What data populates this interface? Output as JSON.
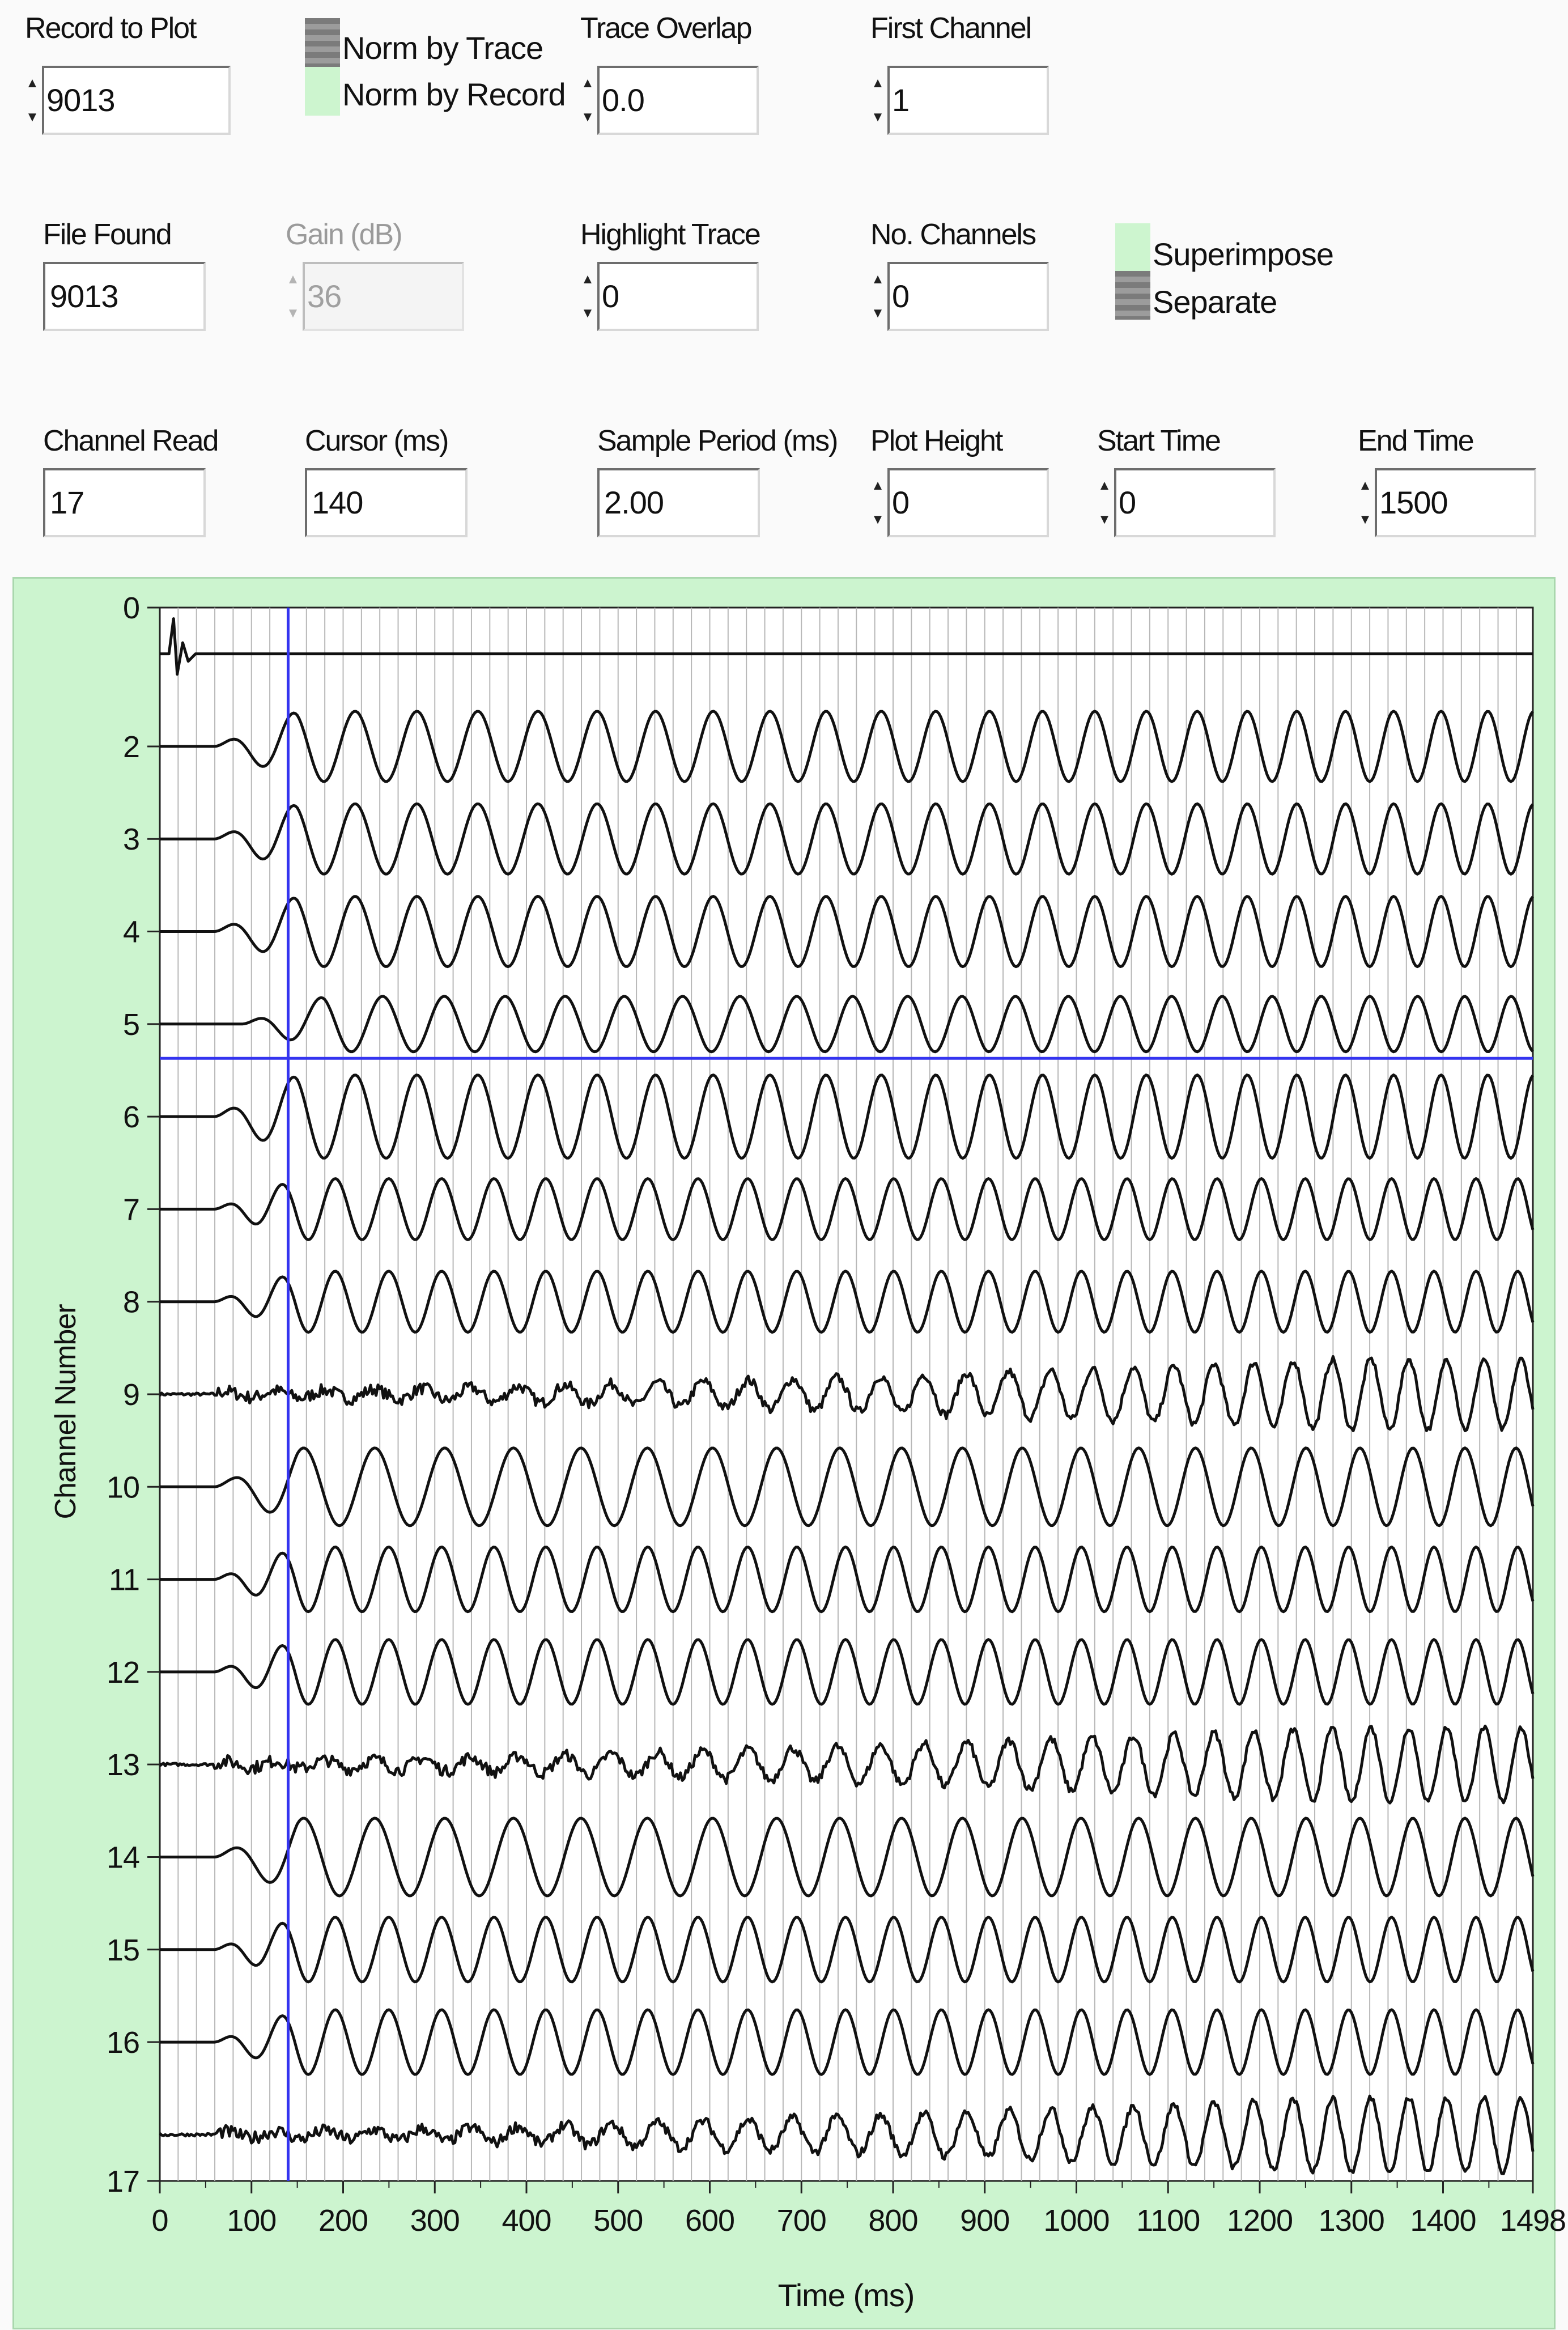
{
  "controls": {
    "record_to_plot": {
      "label": "Record to Plot",
      "value": "9013"
    },
    "norm_mode": {
      "options": [
        "Norm by Trace",
        "Norm by Record"
      ],
      "selected": "Norm by Record"
    },
    "trace_overlap": {
      "label": "Trace Overlap",
      "value": "0.0"
    },
    "first_channel": {
      "label": "First Channel",
      "value": "1"
    },
    "file_found": {
      "label": "File Found",
      "value": "9013"
    },
    "gain_db": {
      "label": "Gain (dB)",
      "value": "36",
      "enabled": false
    },
    "highlight_trace": {
      "label": "Highlight Trace",
      "value": "0"
    },
    "no_channels": {
      "label": "No. Channels",
      "value": "0"
    },
    "display_mode": {
      "options": [
        "Superimpose",
        "Separate"
      ],
      "selected": "Superimpose"
    },
    "channel_read": {
      "label": "Channel Read",
      "value": "17"
    },
    "cursor_ms": {
      "label": "Cursor (ms)",
      "value": "140"
    },
    "sample_period_ms": {
      "label": "Sample Period (ms)",
      "value": "2.00"
    },
    "plot_height": {
      "label": "Plot Height",
      "value": "0"
    },
    "start_time": {
      "label": "Start Time",
      "value": "0"
    },
    "end_time": {
      "label": "End Time",
      "value": "1500"
    }
  },
  "colors": {
    "panel_bg": "#ccf4cf",
    "plot_bg": "#ffffff",
    "grid": "#b8b8b8",
    "trace": "#111111",
    "cursor": "#3434f0"
  },
  "chart_data": {
    "type": "line",
    "xlabel": "Time (ms)",
    "ylabel": "Channel Number",
    "xlim": [
      0,
      1498
    ],
    "ylim": [
      0,
      17
    ],
    "x_ticks": [
      "0",
      "100",
      "200",
      "300",
      "400",
      "500",
      "600",
      "700",
      "800",
      "900",
      "1000",
      "1100",
      "1200",
      "1300",
      "1400",
      "1498"
    ],
    "y_ticks": [
      "0",
      "2",
      "3",
      "4",
      "5",
      "6",
      "7",
      "8",
      "9",
      "10",
      "11",
      "12",
      "13",
      "14",
      "15",
      "16",
      "17"
    ],
    "cursor_time_ms": 140,
    "highlight_channel_line": 4.87,
    "grid_x_step_ms": 20,
    "series": [
      {
        "channel": 1,
        "baseline": 0.5,
        "kind": "impulse",
        "onset_ms": 15
      },
      {
        "channel": 2,
        "baseline": 1.5,
        "kind": "wave",
        "onset_ms": 60,
        "period_start_ms": 70,
        "period_end_ms": 50,
        "amplitude": 0.38
      },
      {
        "channel": 3,
        "baseline": 2.5,
        "kind": "wave",
        "onset_ms": 60,
        "period_start_ms": 70,
        "period_end_ms": 50,
        "amplitude": 0.38
      },
      {
        "channel": 4,
        "baseline": 3.5,
        "kind": "wave",
        "onset_ms": 60,
        "period_start_ms": 70,
        "period_end_ms": 50,
        "amplitude": 0.38
      },
      {
        "channel": 5,
        "baseline": 4.5,
        "kind": "wave",
        "onset_ms": 90,
        "period_start_ms": 70,
        "period_end_ms": 50,
        "amplitude": 0.3
      },
      {
        "channel": 6,
        "baseline": 5.5,
        "kind": "wave",
        "onset_ms": 60,
        "period_start_ms": 70,
        "period_end_ms": 50,
        "amplitude": 0.45
      },
      {
        "channel": 7,
        "baseline": 6.5,
        "kind": "wave",
        "onset_ms": 60,
        "period_start_ms": 60,
        "period_end_ms": 45,
        "amplitude": 0.33
      },
      {
        "channel": 8,
        "baseline": 7.5,
        "kind": "wave",
        "onset_ms": 60,
        "period_start_ms": 60,
        "period_end_ms": 45,
        "amplitude": 0.33
      },
      {
        "channel": 9,
        "baseline": 8.5,
        "kind": "noisy",
        "onset_ms": 60,
        "period_start_ms": 55,
        "period_end_ms": 40,
        "amplitude": 0.38
      },
      {
        "channel": 10,
        "baseline": 9.5,
        "kind": "wave",
        "onset_ms": 60,
        "period_start_ms": 80,
        "period_end_ms": 55,
        "amplitude": 0.42
      },
      {
        "channel": 11,
        "baseline": 10.5,
        "kind": "wave",
        "onset_ms": 60,
        "period_start_ms": 60,
        "period_end_ms": 45,
        "amplitude": 0.35
      },
      {
        "channel": 12,
        "baseline": 11.5,
        "kind": "wave",
        "onset_ms": 60,
        "period_start_ms": 60,
        "period_end_ms": 45,
        "amplitude": 0.35
      },
      {
        "channel": 13,
        "baseline": 12.5,
        "kind": "noisy",
        "onset_ms": 60,
        "period_start_ms": 55,
        "period_end_ms": 40,
        "amplitude": 0.4
      },
      {
        "channel": 14,
        "baseline": 13.5,
        "kind": "wave",
        "onset_ms": 60,
        "period_start_ms": 80,
        "period_end_ms": 55,
        "amplitude": 0.42
      },
      {
        "channel": 15,
        "baseline": 14.5,
        "kind": "wave",
        "onset_ms": 60,
        "period_start_ms": 60,
        "period_end_ms": 45,
        "amplitude": 0.35
      },
      {
        "channel": 16,
        "baseline": 15.5,
        "kind": "wave",
        "onset_ms": 60,
        "period_start_ms": 60,
        "period_end_ms": 45,
        "amplitude": 0.35
      },
      {
        "channel": 17,
        "baseline": 16.5,
        "kind": "noisy",
        "onset_ms": 60,
        "period_start_ms": 55,
        "period_end_ms": 40,
        "amplitude": 0.4
      }
    ]
  }
}
